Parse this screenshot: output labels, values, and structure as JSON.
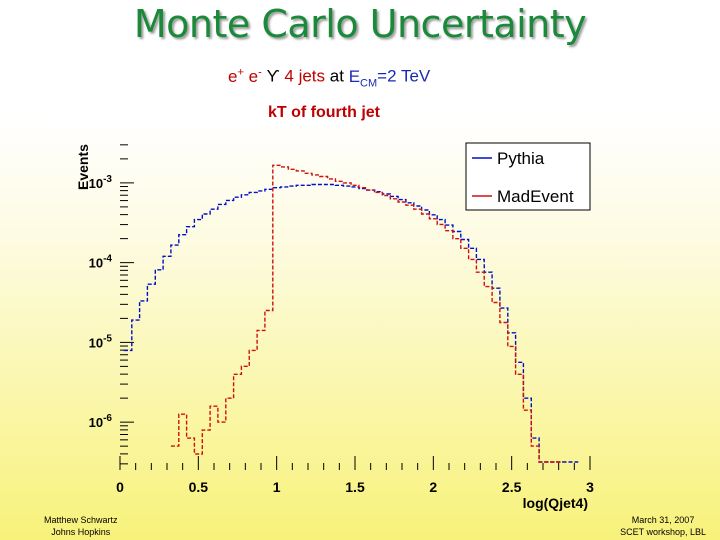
{
  "slide": {
    "title": "Monte Carlo Uncertainty",
    "subtitle": {
      "part1": "e",
      "part1_sup": "+",
      "part2": "e",
      "part2_sup": "-",
      "arrow": "ϒ",
      "jets": "4 jets",
      "at": "at",
      "e": "E",
      "cm": "CM",
      "value": "=2 TeV"
    },
    "footer_left": [
      "Matthew Schwartz",
      "Johns Hopkins"
    ],
    "footer_right": [
      "March 31, 2007",
      "SCET workshop, LBL"
    ]
  },
  "chart_data": {
    "type": "line",
    "title": "kT of fourth jet",
    "xlabel": "log(Qjet4)",
    "ylabel": "Events",
    "xlim": [
      0,
      3
    ],
    "ylog": true,
    "ylim_exp": [
      -6.6,
      -2.5
    ],
    "x_ticks": [
      "0",
      "0.5",
      "1",
      "1.5",
      "2",
      "2.5",
      "3"
    ],
    "y_ticks": [
      {
        "base": "10",
        "exp": "-3",
        "value": -3
      },
      {
        "base": "10",
        "exp": "-4",
        "value": -4
      },
      {
        "base": "10",
        "exp": "-5",
        "value": -5
      },
      {
        "base": "10",
        "exp": "-6",
        "value": -6
      }
    ],
    "legend": {
      "position": "top-right",
      "entries": [
        {
          "name": "Pythia",
          "color": "#0010c8"
        },
        {
          "name": "MadEvent",
          "color": "#d01010"
        }
      ]
    },
    "series": [
      {
        "name": "Pythia",
        "color": "#0010c8",
        "x": [
          0.05,
          0.1,
          0.15,
          0.2,
          0.25,
          0.3,
          0.35,
          0.4,
          0.45,
          0.5,
          0.55,
          0.6,
          0.65,
          0.7,
          0.75,
          0.8,
          0.85,
          0.9,
          0.95,
          1.0,
          1.05,
          1.1,
          1.15,
          1.2,
          1.25,
          1.3,
          1.35,
          1.4,
          1.45,
          1.5,
          1.55,
          1.6,
          1.65,
          1.7,
          1.75,
          1.8,
          1.85,
          1.9,
          1.95,
          2.0,
          2.05,
          2.1,
          2.15,
          2.2,
          2.25,
          2.3,
          2.35,
          2.4,
          2.45,
          2.5,
          2.55,
          2.6,
          2.65,
          2.7,
          2.75,
          2.8,
          2.85,
          2.9
        ],
        "y_exp": [
          -5.1,
          -4.72,
          -4.48,
          -4.27,
          -4.09,
          -3.92,
          -3.78,
          -3.65,
          -3.55,
          -3.46,
          -3.39,
          -3.33,
          -3.27,
          -3.22,
          -3.18,
          -3.15,
          -3.12,
          -3.1,
          -3.08,
          -3.06,
          -3.05,
          -3.04,
          -3.03,
          -3.03,
          -3.02,
          -3.02,
          -3.02,
          -3.03,
          -3.04,
          -3.05,
          -3.07,
          -3.09,
          -3.11,
          -3.14,
          -3.17,
          -3.21,
          -3.25,
          -3.29,
          -3.34,
          -3.4,
          -3.46,
          -3.53,
          -3.61,
          -3.71,
          -3.82,
          -3.96,
          -4.12,
          -4.32,
          -4.57,
          -4.88,
          -5.25,
          -5.7,
          -6.2,
          -6.5,
          -6.5,
          -6.5,
          -6.5,
          -6.5
        ]
      },
      {
        "name": "MadEvent",
        "color": "#d01010",
        "x": [
          0.35,
          0.4,
          0.45,
          0.5,
          0.55,
          0.6,
          0.65,
          0.7,
          0.75,
          0.8,
          0.85,
          0.9,
          0.95,
          1.0,
          1.05,
          1.1,
          1.15,
          1.2,
          1.25,
          1.3,
          1.35,
          1.4,
          1.45,
          1.5,
          1.55,
          1.6,
          1.65,
          1.7,
          1.75,
          1.8,
          1.85,
          1.9,
          1.95,
          2.0,
          2.05,
          2.1,
          2.15,
          2.2,
          2.25,
          2.3,
          2.35,
          2.4,
          2.45,
          2.5,
          2.55,
          2.6,
          2.65,
          2.7,
          2.75,
          2.8
        ],
        "y_exp": [
          -6.3,
          -5.9,
          -6.2,
          -6.4,
          -6.1,
          -5.8,
          -6.0,
          -5.7,
          -5.4,
          -5.3,
          -5.1,
          -4.85,
          -4.6,
          -2.78,
          -2.8,
          -2.83,
          -2.85,
          -2.88,
          -2.9,
          -2.92,
          -2.95,
          -2.98,
          -3.0,
          -3.03,
          -3.06,
          -3.09,
          -3.12,
          -3.16,
          -3.2,
          -3.24,
          -3.28,
          -3.33,
          -3.39,
          -3.45,
          -3.52,
          -3.6,
          -3.7,
          -3.82,
          -3.96,
          -4.12,
          -4.3,
          -4.5,
          -4.75,
          -5.05,
          -5.4,
          -5.85,
          -6.3,
          -6.5,
          -6.5,
          -6.5
        ]
      }
    ]
  }
}
